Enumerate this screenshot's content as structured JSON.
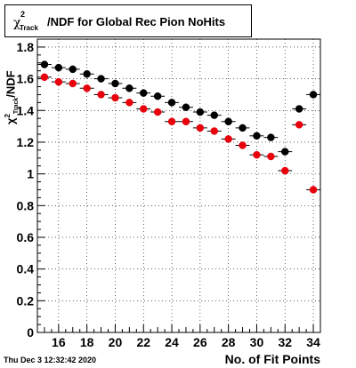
{
  "title": {
    "chi": "χ",
    "sup": "2",
    "sub": "Track",
    "rest": "/NDF for Global Rec Pion NoHits"
  },
  "timestamp": "Thu Dec  3 12:32:42 2020",
  "chart_data": {
    "type": "scatter",
    "title": "χ²Track/NDF for Global Rec Pion NoHits",
    "xlabel": "No. of Fit Points",
    "ylabel": "χ²Track/NDF",
    "xlim": [
      14.5,
      34.5
    ],
    "ylim": [
      0,
      1.85
    ],
    "xticks": [
      16,
      18,
      20,
      22,
      24,
      26,
      28,
      30,
      32,
      34
    ],
    "yticks": [
      0,
      0.2,
      0.4,
      0.6,
      0.8,
      1,
      1.2,
      1.4,
      1.6,
      1.8
    ],
    "grid": true,
    "series": [
      {
        "color": "#000000",
        "x": [
          15,
          16,
          17,
          18,
          19,
          20,
          21,
          22,
          23,
          24,
          25,
          26,
          27,
          28,
          29,
          30,
          31,
          32,
          33,
          34
        ],
        "y": [
          1.69,
          1.67,
          1.66,
          1.63,
          1.6,
          1.57,
          1.54,
          1.51,
          1.49,
          1.45,
          1.42,
          1.39,
          1.37,
          1.33,
          1.29,
          1.24,
          1.23,
          1.14,
          1.41,
          1.5
        ]
      },
      {
        "color": "#e8000b",
        "x": [
          15,
          16,
          17,
          18,
          19,
          20,
          21,
          22,
          23,
          24,
          25,
          26,
          27,
          28,
          29,
          30,
          31,
          32,
          33,
          34
        ],
        "y": [
          1.61,
          1.58,
          1.57,
          1.54,
          1.5,
          1.48,
          1.45,
          1.41,
          1.39,
          1.33,
          1.33,
          1.29,
          1.27,
          1.22,
          1.18,
          1.12,
          1.11,
          1.02,
          1.31,
          0.9
        ]
      }
    ]
  }
}
